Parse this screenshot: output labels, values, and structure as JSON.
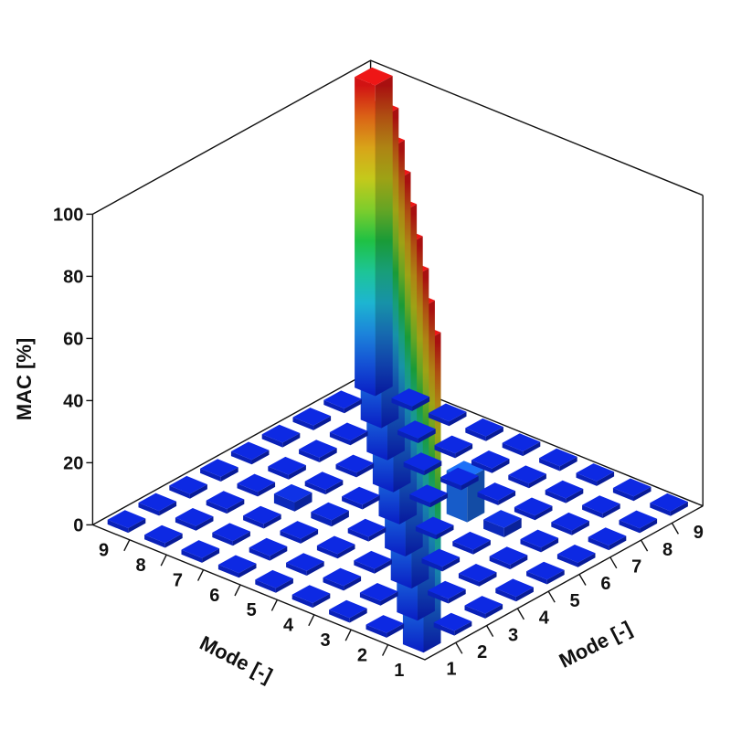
{
  "chart_data": {
    "type": "bar3d",
    "title": "",
    "zlabel": "MAC [%]",
    "xlabel": "Mode [-]",
    "ylabel": "Mode [-]",
    "z_ticks": [
      "0",
      "20",
      "40",
      "60",
      "80",
      "100"
    ],
    "zlim": [
      0,
      100
    ],
    "x_categories": [
      "1",
      "2",
      "3",
      "4",
      "5",
      "6",
      "7",
      "8",
      "9"
    ],
    "y_categories": [
      "1",
      "2",
      "3",
      "4",
      "5",
      "6",
      "7",
      "8",
      "9"
    ],
    "colormap": [
      "#0a1fd6",
      "#1e7bf0",
      "#1fd8e0",
      "#22d24a",
      "#cde81e",
      "#f3a51a",
      "#e31515"
    ],
    "base_value": 1.5,
    "notable_off_diagonal": [
      {
        "x": 6,
        "y": 4,
        "value": 14
      },
      {
        "x": 3,
        "y": 6,
        "value": 3
      },
      {
        "x": 7,
        "y": 4,
        "value": 3
      },
      {
        "x": 4,
        "y": 6,
        "value": 2
      }
    ],
    "diagonal_value": 100
  }
}
